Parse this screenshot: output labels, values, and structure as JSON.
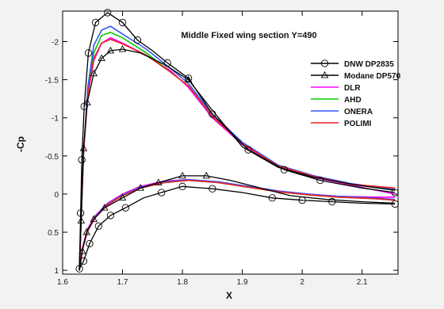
{
  "chart_data": {
    "type": "line",
    "title": "Middle Fixed wing section Y=490",
    "xlabel": "X",
    "ylabel": "-Cp",
    "xlim": [
      1.6,
      2.16
    ],
    "ylim": [
      -2.4,
      1.05
    ],
    "y_inverted": true,
    "x_ticks": [
      1.6,
      1.7,
      1.8,
      1.9,
      2.0,
      2.1
    ],
    "x_tick_labels": [
      "1.6",
      "1.7",
      "1.8",
      "1.9",
      "2",
      "2.1"
    ],
    "y_ticks": [
      -2,
      -1.5,
      -1,
      -0.5,
      0,
      0.5,
      1
    ],
    "y_tick_labels": [
      "-2",
      "-1.5",
      "-1",
      "-0.5",
      "0",
      "0.5",
      "1"
    ],
    "grid": false,
    "legend_position": "right",
    "series": [
      {
        "name": "DNW DP2835",
        "color": "#000000",
        "marker": "circle",
        "upper": [
          [
            1.628,
            1.0
          ],
          [
            1.63,
            0.25
          ],
          [
            1.632,
            -0.45
          ],
          [
            1.636,
            -1.15
          ],
          [
            1.643,
            -1.85
          ],
          [
            1.655,
            -2.25
          ],
          [
            1.675,
            -2.38
          ],
          [
            1.7,
            -2.25
          ],
          [
            1.725,
            -2.02
          ],
          [
            1.75,
            -1.88
          ],
          [
            1.775,
            -1.72
          ],
          [
            1.81,
            -1.52
          ],
          [
            1.85,
            -1.05
          ],
          [
            1.91,
            -0.58
          ],
          [
            1.97,
            -0.32
          ],
          [
            2.03,
            -0.18
          ],
          [
            2.1,
            -0.08
          ],
          [
            2.155,
            -0.02
          ]
        ],
        "lower": [
          [
            1.628,
            0.98
          ],
          [
            1.635,
            0.88
          ],
          [
            1.645,
            0.65
          ],
          [
            1.66,
            0.42
          ],
          [
            1.68,
            0.28
          ],
          [
            1.705,
            0.18
          ],
          [
            1.735,
            0.05
          ],
          [
            1.765,
            -0.02
          ],
          [
            1.8,
            -0.1
          ],
          [
            1.85,
            -0.07
          ],
          [
            1.9,
            -0.02
          ],
          [
            1.95,
            0.05
          ],
          [
            2.0,
            0.08
          ],
          [
            2.05,
            0.1
          ],
          [
            2.1,
            0.12
          ],
          [
            2.155,
            0.13
          ]
        ],
        "upper_markers": [
          [
            1.63,
            0.25
          ],
          [
            1.632,
            -0.45
          ],
          [
            1.636,
            -1.15
          ],
          [
            1.643,
            -1.85
          ],
          [
            1.655,
            -2.25
          ],
          [
            1.675,
            -2.38
          ],
          [
            1.7,
            -2.25
          ],
          [
            1.725,
            -2.02
          ],
          [
            1.775,
            -1.72
          ],
          [
            1.81,
            -1.52
          ],
          [
            1.85,
            -1.05
          ],
          [
            1.91,
            -0.58
          ],
          [
            1.97,
            -0.32
          ],
          [
            2.03,
            -0.18
          ],
          [
            2.155,
            -0.02
          ]
        ],
        "lower_markers": [
          [
            1.628,
            0.98
          ],
          [
            1.635,
            0.88
          ],
          [
            1.645,
            0.65
          ],
          [
            1.66,
            0.42
          ],
          [
            1.68,
            0.28
          ],
          [
            1.705,
            0.18
          ],
          [
            1.765,
            -0.02
          ],
          [
            1.8,
            -0.1
          ],
          [
            1.85,
            -0.07
          ],
          [
            1.95,
            0.05
          ],
          [
            2.0,
            0.08
          ],
          [
            2.05,
            0.1
          ],
          [
            2.155,
            0.13
          ]
        ]
      },
      {
        "name": "Modane DP570",
        "color": "#000000",
        "marker": "triangle",
        "upper": [
          [
            1.628,
            1.0
          ],
          [
            1.631,
            0.35
          ],
          [
            1.635,
            -0.6
          ],
          [
            1.641,
            -1.2
          ],
          [
            1.652,
            -1.58
          ],
          [
            1.665,
            -1.78
          ],
          [
            1.68,
            -1.88
          ],
          [
            1.7,
            -1.9
          ],
          [
            1.73,
            -1.85
          ],
          [
            1.77,
            -1.7
          ],
          [
            1.81,
            -1.5
          ],
          [
            1.85,
            -1.1
          ],
          [
            1.9,
            -0.62
          ],
          [
            1.96,
            -0.35
          ],
          [
            2.02,
            -0.22
          ],
          [
            2.09,
            -0.12
          ],
          [
            2.155,
            -0.05
          ]
        ],
        "lower": [
          [
            1.628,
            1.0
          ],
          [
            1.633,
            0.75
          ],
          [
            1.64,
            0.5
          ],
          [
            1.652,
            0.33
          ],
          [
            1.67,
            0.18
          ],
          [
            1.7,
            0.05
          ],
          [
            1.73,
            -0.08
          ],
          [
            1.76,
            -0.15
          ],
          [
            1.8,
            -0.24
          ],
          [
            1.84,
            -0.24
          ],
          [
            1.88,
            -0.18
          ],
          [
            1.93,
            -0.08
          ],
          [
            1.98,
            0.02
          ],
          [
            2.04,
            0.07
          ],
          [
            2.1,
            0.1
          ],
          [
            2.155,
            0.12
          ]
        ],
        "upper_markers": [
          [
            1.631,
            0.35
          ],
          [
            1.635,
            -0.6
          ],
          [
            1.641,
            -1.2
          ],
          [
            1.652,
            -1.58
          ],
          [
            1.665,
            -1.78
          ],
          [
            1.68,
            -1.88
          ],
          [
            1.7,
            -1.9
          ],
          [
            1.81,
            -1.5
          ]
        ],
        "lower_markers": [
          [
            1.633,
            0.75
          ],
          [
            1.64,
            0.5
          ],
          [
            1.652,
            0.33
          ],
          [
            1.67,
            0.18
          ],
          [
            1.7,
            0.05
          ],
          [
            1.73,
            -0.08
          ],
          [
            1.76,
            -0.15
          ],
          [
            1.8,
            -0.24
          ],
          [
            1.84,
            -0.24
          ]
        ]
      },
      {
        "name": "DLR",
        "color": "#ff00ff",
        "marker": "none",
        "upper": [
          [
            1.628,
            1.0
          ],
          [
            1.631,
            0.3
          ],
          [
            1.635,
            -0.55
          ],
          [
            1.642,
            -1.3
          ],
          [
            1.652,
            -1.75
          ],
          [
            1.665,
            -1.98
          ],
          [
            1.68,
            -2.05
          ],
          [
            1.7,
            -1.98
          ],
          [
            1.74,
            -1.82
          ],
          [
            1.78,
            -1.62
          ],
          [
            1.81,
            -1.4
          ],
          [
            1.85,
            -1.0
          ],
          [
            1.9,
            -0.65
          ],
          [
            1.96,
            -0.36
          ],
          [
            2.02,
            -0.22
          ],
          [
            2.08,
            -0.12
          ],
          [
            2.155,
            0.0
          ]
        ],
        "lower": [
          [
            1.628,
            1.0
          ],
          [
            1.633,
            0.7
          ],
          [
            1.642,
            0.45
          ],
          [
            1.655,
            0.28
          ],
          [
            1.675,
            0.12
          ],
          [
            1.7,
            0.0
          ],
          [
            1.73,
            -0.1
          ],
          [
            1.77,
            -0.17
          ],
          [
            1.81,
            -0.19
          ],
          [
            1.86,
            -0.16
          ],
          [
            1.91,
            -0.1
          ],
          [
            1.96,
            -0.04
          ],
          [
            2.01,
            0.0
          ],
          [
            2.06,
            0.03
          ],
          [
            2.12,
            0.04
          ],
          [
            2.155,
            0.04
          ]
        ]
      },
      {
        "name": "AHD",
        "color": "#00cc00",
        "marker": "none",
        "upper": [
          [
            1.628,
            1.0
          ],
          [
            1.631,
            0.3
          ],
          [
            1.635,
            -0.55
          ],
          [
            1.642,
            -1.35
          ],
          [
            1.652,
            -1.85
          ],
          [
            1.665,
            -2.08
          ],
          [
            1.68,
            -2.12
          ],
          [
            1.7,
            -2.05
          ],
          [
            1.74,
            -1.85
          ],
          [
            1.78,
            -1.6
          ],
          [
            1.81,
            -1.42
          ],
          [
            1.85,
            -1.02
          ],
          [
            1.9,
            -0.66
          ],
          [
            1.96,
            -0.37
          ],
          [
            2.02,
            -0.23
          ],
          [
            2.08,
            -0.13
          ],
          [
            2.155,
            -0.05
          ]
        ],
        "lower": [
          [
            1.628,
            1.0
          ],
          [
            1.633,
            0.72
          ],
          [
            1.642,
            0.48
          ],
          [
            1.655,
            0.3
          ],
          [
            1.675,
            0.14
          ],
          [
            1.7,
            0.02
          ],
          [
            1.73,
            -0.08
          ],
          [
            1.77,
            -0.15
          ],
          [
            1.81,
            -0.18
          ],
          [
            1.86,
            -0.15
          ],
          [
            1.91,
            -0.09
          ],
          [
            1.96,
            -0.03
          ],
          [
            2.01,
            0.01
          ],
          [
            2.06,
            0.04
          ],
          [
            2.12,
            0.06
          ],
          [
            2.155,
            0.08
          ]
        ]
      },
      {
        "name": "ONERA",
        "color": "#3355ff",
        "marker": "none",
        "upper": [
          [
            1.628,
            1.0
          ],
          [
            1.631,
            0.3
          ],
          [
            1.635,
            -0.55
          ],
          [
            1.642,
            -1.4
          ],
          [
            1.652,
            -1.95
          ],
          [
            1.665,
            -2.15
          ],
          [
            1.68,
            -2.2
          ],
          [
            1.7,
            -2.1
          ],
          [
            1.74,
            -1.9
          ],
          [
            1.78,
            -1.65
          ],
          [
            1.81,
            -1.45
          ],
          [
            1.85,
            -1.05
          ],
          [
            1.9,
            -0.68
          ],
          [
            1.96,
            -0.38
          ],
          [
            2.02,
            -0.24
          ],
          [
            2.08,
            -0.14
          ],
          [
            2.155,
            -0.06
          ]
        ],
        "lower": [
          [
            1.628,
            1.0
          ],
          [
            1.633,
            0.72
          ],
          [
            1.642,
            0.47
          ],
          [
            1.655,
            0.29
          ],
          [
            1.675,
            0.13
          ],
          [
            1.7,
            0.01
          ],
          [
            1.73,
            -0.09
          ],
          [
            1.77,
            -0.16
          ],
          [
            1.81,
            -0.19
          ],
          [
            1.86,
            -0.16
          ],
          [
            1.91,
            -0.1
          ],
          [
            1.96,
            -0.04
          ],
          [
            2.01,
            0.0
          ],
          [
            2.06,
            0.03
          ],
          [
            2.12,
            0.05
          ],
          [
            2.155,
            0.07
          ]
        ]
      },
      {
        "name": "POLIMI",
        "color": "#ee2222",
        "marker": "none",
        "upper": [
          [
            1.628,
            1.0
          ],
          [
            1.631,
            0.3
          ],
          [
            1.635,
            -0.55
          ],
          [
            1.642,
            -1.3
          ],
          [
            1.652,
            -1.78
          ],
          [
            1.665,
            -1.98
          ],
          [
            1.68,
            -2.03
          ],
          [
            1.7,
            -1.97
          ],
          [
            1.74,
            -1.82
          ],
          [
            1.78,
            -1.6
          ],
          [
            1.81,
            -1.42
          ],
          [
            1.85,
            -1.02
          ],
          [
            1.9,
            -0.66
          ],
          [
            1.96,
            -0.37
          ],
          [
            2.02,
            -0.23
          ],
          [
            2.08,
            -0.13
          ],
          [
            2.155,
            -0.08
          ]
        ],
        "lower": [
          [
            1.628,
            1.0
          ],
          [
            1.633,
            0.72
          ],
          [
            1.642,
            0.48
          ],
          [
            1.655,
            0.3
          ],
          [
            1.675,
            0.14
          ],
          [
            1.7,
            0.02
          ],
          [
            1.73,
            -0.08
          ],
          [
            1.77,
            -0.15
          ],
          [
            1.81,
            -0.18
          ],
          [
            1.86,
            -0.15
          ],
          [
            1.91,
            -0.09
          ],
          [
            1.96,
            -0.03
          ],
          [
            2.01,
            0.01
          ],
          [
            2.06,
            0.04
          ],
          [
            2.12,
            0.06
          ],
          [
            2.155,
            0.08
          ]
        ]
      }
    ]
  }
}
